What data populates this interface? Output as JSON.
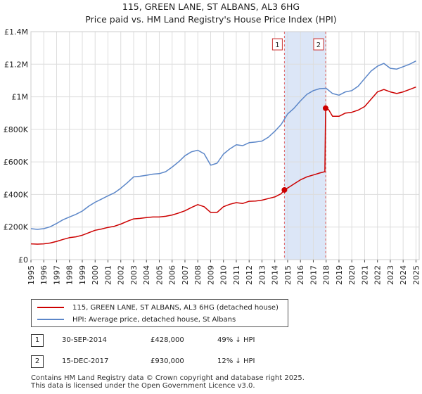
{
  "title_line1": "115, GREEN LANE, ST ALBANS, AL3 6HG",
  "title_line2": "Price paid vs. HM Land Registry's House Price Index (HPI)",
  "chart_data": {
    "type": "line",
    "title": "115, GREEN LANE, ST ALBANS, AL3 6HG — Price paid vs. HM Land Registry's House Price Index (HPI)",
    "xlim": [
      1995,
      2025.25
    ],
    "ylim": [
      0,
      1400000
    ],
    "y_ticks": [
      {
        "value": 0,
        "label": "£0"
      },
      {
        "value": 200000,
        "label": "£200K"
      },
      {
        "value": 400000,
        "label": "£400K"
      },
      {
        "value": 600000,
        "label": "£600K"
      },
      {
        "value": 800000,
        "label": "£800K"
      },
      {
        "value": 1000000,
        "label": "£1M"
      },
      {
        "value": 1200000,
        "label": "£1.2M"
      },
      {
        "value": 1400000,
        "label": "£1.4M"
      }
    ],
    "x_ticks": [
      "1995",
      "1996",
      "1997",
      "1998",
      "1999",
      "2000",
      "2001",
      "2002",
      "2003",
      "2004",
      "2005",
      "2006",
      "2007",
      "2008",
      "2009",
      "2010",
      "2011",
      "2012",
      "2013",
      "2014",
      "2015",
      "2016",
      "2017",
      "2018",
      "2019",
      "2020",
      "2021",
      "2022",
      "2023",
      "2024",
      "2025"
    ],
    "grid": true,
    "shaded_span": {
      "start": 2014.75,
      "end": 2017.96,
      "color": "#dce6f7"
    },
    "series": [
      {
        "name": "115, GREEN LANE, ST ALBANS, AL3 6HG (detached house)",
        "color": "#cc0000",
        "x": [
          1995,
          1995.5,
          1996,
          1996.5,
          1997,
          1997.5,
          1998,
          1998.5,
          1999,
          1999.5,
          2000,
          2000.5,
          2001,
          2001.5,
          2002,
          2002.5,
          2003,
          2003.5,
          2004,
          2004.5,
          2005,
          2005.5,
          2006,
          2006.5,
          2007,
          2007.5,
          2008,
          2008.5,
          2009,
          2009.5,
          2010,
          2010.5,
          2011,
          2011.5,
          2012,
          2012.5,
          2013,
          2013.5,
          2014,
          2014.5,
          2014.75,
          2015,
          2015.5,
          2016,
          2016.5,
          2017,
          2017.5,
          2017.9,
          2017.96,
          2018.2,
          2018.5,
          2019,
          2019.5,
          2020,
          2020.5,
          2021,
          2021.5,
          2022,
          2022.5,
          2023,
          2023.5,
          2024,
          2024.5,
          2025
        ],
        "values": [
          97000,
          95000,
          97000,
          102000,
          112000,
          124000,
          135000,
          140000,
          150000,
          165000,
          180000,
          188000,
          198000,
          205000,
          218000,
          235000,
          250000,
          253000,
          258000,
          262000,
          262000,
          266000,
          274000,
          286000,
          300000,
          320000,
          338000,
          325000,
          290000,
          290000,
          325000,
          340000,
          350000,
          345000,
          358000,
          360000,
          365000,
          375000,
          385000,
          405000,
          428000,
          440000,
          465000,
          490000,
          508000,
          520000,
          532000,
          540000,
          930000,
          920000,
          880000,
          880000,
          900000,
          905000,
          918000,
          940000,
          985000,
          1030000,
          1045000,
          1030000,
          1020000,
          1030000,
          1045000,
          1060000
        ]
      },
      {
        "name": "HPI: Average price, detached house, St Albans",
        "color": "#5b86c8",
        "x": [
          1995,
          1995.5,
          1996,
          1996.5,
          1997,
          1997.5,
          1998,
          1998.5,
          1999,
          1999.5,
          2000,
          2000.5,
          2001,
          2001.5,
          2002,
          2002.5,
          2003,
          2003.5,
          2004,
          2004.5,
          2005,
          2005.5,
          2006,
          2006.5,
          2007,
          2007.5,
          2008,
          2008.5,
          2009,
          2009.5,
          2010,
          2010.5,
          2011,
          2011.5,
          2012,
          2012.5,
          2013,
          2013.5,
          2014,
          2014.5,
          2015,
          2015.5,
          2016,
          2016.5,
          2017,
          2017.5,
          2018,
          2018.5,
          2019,
          2019.5,
          2020,
          2020.5,
          2021,
          2021.5,
          2022,
          2022.5,
          2023,
          2023.5,
          2024,
          2024.5,
          2025
        ],
        "values": [
          190000,
          186000,
          190000,
          202000,
          222000,
          245000,
          262000,
          278000,
          298000,
          328000,
          352000,
          372000,
          392000,
          410000,
          438000,
          472000,
          508000,
          512000,
          518000,
          525000,
          528000,
          540000,
          568000,
          600000,
          638000,
          662000,
          672000,
          650000,
          580000,
          592000,
          648000,
          680000,
          705000,
          700000,
          718000,
          722000,
          728000,
          752000,
          788000,
          830000,
          895000,
          930000,
          975000,
          1015000,
          1038000,
          1050000,
          1052000,
          1020000,
          1010000,
          1030000,
          1038000,
          1065000,
          1112000,
          1158000,
          1188000,
          1205000,
          1175000,
          1170000,
          1185000,
          1200000,
          1220000
        ]
      }
    ],
    "markers": [
      {
        "label": "1",
        "x": 2014.75,
        "value": 428000
      },
      {
        "label": "2",
        "x": 2017.96,
        "value": 930000
      }
    ]
  },
  "legend": {
    "line1": "115, GREEN LANE, ST ALBANS, AL3 6HG (detached house)",
    "line2": "HPI: Average price, detached house, St Albans"
  },
  "sales": [
    {
      "num": "1",
      "date": "30-SEP-2014",
      "price": "£428,000",
      "hpi": "49% ↓ HPI"
    },
    {
      "num": "2",
      "date": "15-DEC-2017",
      "price": "£930,000",
      "hpi": "12% ↓ HPI"
    }
  ],
  "footer_line1": "Contains HM Land Registry data © Crown copyright and database right 2025.",
  "footer_line2": "This data is licensed under the Open Government Licence v3.0.",
  "colors": {
    "red": "#cc0000",
    "blue": "#5b86c8",
    "grid": "#dddddd",
    "shade": "#dce6f7"
  }
}
